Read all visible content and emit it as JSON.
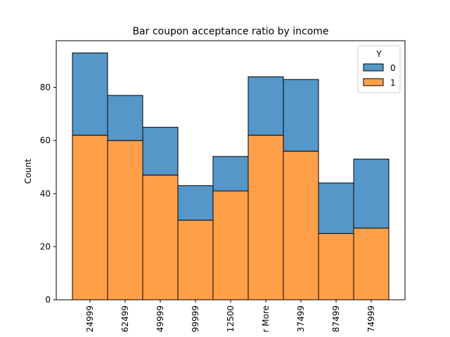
{
  "chart_data": {
    "type": "bar",
    "stacked": true,
    "title": "Bar coupon acceptance ratio by income",
    "xlabel": "",
    "ylabel": "Count",
    "ylim": [
      0,
      97.6
    ],
    "yticks": [
      0,
      20,
      40,
      60,
      80
    ],
    "categories": [
      "24999",
      "62499",
      "49999",
      "99999",
      "12500",
      "r More",
      "37499",
      "87499",
      "74999"
    ],
    "series": [
      {
        "name": "1",
        "color": "#ff9f4a",
        "values": [
          62,
          60,
          47,
          30,
          41,
          62,
          56,
          25,
          27
        ]
      },
      {
        "name": "0",
        "color": "#5597c8",
        "values": [
          31,
          17,
          18,
          13,
          13,
          22,
          27,
          19,
          26
        ]
      }
    ],
    "legend": {
      "title": "Y",
      "placement": "top-right",
      "entries": [
        "0",
        "1"
      ]
    },
    "grid": false
  }
}
